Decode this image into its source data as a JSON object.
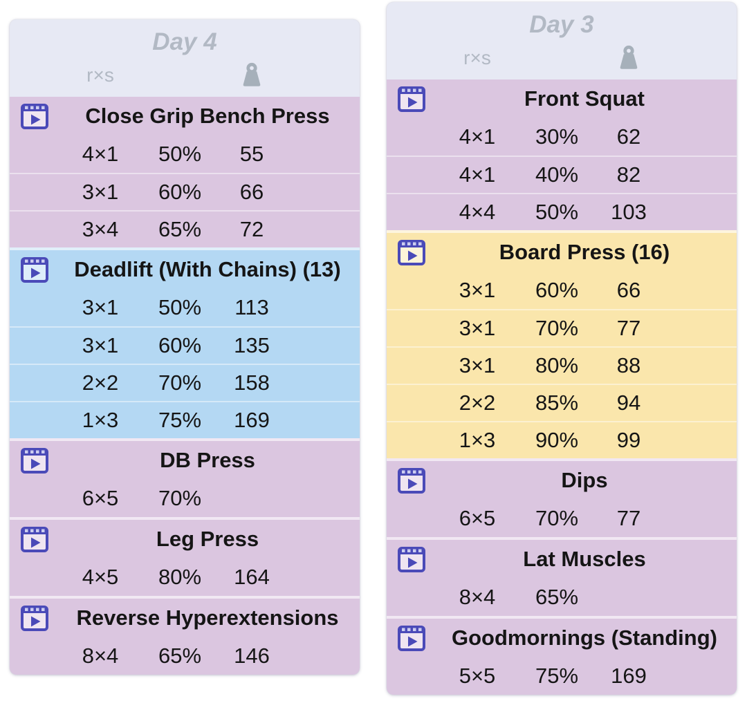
{
  "colors": {
    "page_background": "#ffffff",
    "card_header_background": "#e7e9f4",
    "header_text": "#b2b9c4",
    "video_icon": "#4a4ab8",
    "weight_icon": "#a6b0ba",
    "text": "#151515",
    "sections": {
      "purple": "#dbc6e0",
      "blue": "#b4d8f3",
      "yellow": "#fae6ac"
    }
  },
  "table_header": {
    "rxs_label": "r×s",
    "weight_icon_name": "weight-icon"
  },
  "icons": {
    "video": "video-icon",
    "weight": "weight-icon"
  },
  "days": [
    {
      "title": "Day 4",
      "exercises": [
        {
          "name": "Close Grip Bench Press",
          "color": "purple",
          "sets": [
            {
              "rxs": "4×1",
              "percent": "50%",
              "weight": "55"
            },
            {
              "rxs": "3×1",
              "percent": "60%",
              "weight": "66"
            },
            {
              "rxs": "3×4",
              "percent": "65%",
              "weight": "72"
            }
          ]
        },
        {
          "name": "Deadlift (With Chains) (13)",
          "color": "blue",
          "sets": [
            {
              "rxs": "3×1",
              "percent": "50%",
              "weight": "113"
            },
            {
              "rxs": "3×1",
              "percent": "60%",
              "weight": "135"
            },
            {
              "rxs": "2×2",
              "percent": "70%",
              "weight": "158"
            },
            {
              "rxs": "1×3",
              "percent": "75%",
              "weight": "169"
            }
          ]
        },
        {
          "name": "DB Press",
          "color": "purple",
          "sets": [
            {
              "rxs": "6×5",
              "percent": "70%",
              "weight": ""
            }
          ]
        },
        {
          "name": "Leg Press",
          "color": "purple",
          "sets": [
            {
              "rxs": "4×5",
              "percent": "80%",
              "weight": "164"
            }
          ]
        },
        {
          "name": "Reverse Hyperextensions",
          "color": "purple",
          "sets": [
            {
              "rxs": "8×4",
              "percent": "65%",
              "weight": "146"
            }
          ]
        }
      ]
    },
    {
      "title": "Day 3",
      "exercises": [
        {
          "name": "Front Squat",
          "color": "purple",
          "sets": [
            {
              "rxs": "4×1",
              "percent": "30%",
              "weight": "62"
            },
            {
              "rxs": "4×1",
              "percent": "40%",
              "weight": "82"
            },
            {
              "rxs": "4×4",
              "percent": "50%",
              "weight": "103"
            }
          ]
        },
        {
          "name": "Board Press (16)",
          "color": "yellow",
          "sets": [
            {
              "rxs": "3×1",
              "percent": "60%",
              "weight": "66"
            },
            {
              "rxs": "3×1",
              "percent": "70%",
              "weight": "77"
            },
            {
              "rxs": "3×1",
              "percent": "80%",
              "weight": "88"
            },
            {
              "rxs": "2×2",
              "percent": "85%",
              "weight": "94"
            },
            {
              "rxs": "1×3",
              "percent": "90%",
              "weight": "99"
            }
          ]
        },
        {
          "name": "Dips",
          "color": "purple",
          "sets": [
            {
              "rxs": "6×5",
              "percent": "70%",
              "weight": "77"
            }
          ]
        },
        {
          "name": "Lat Muscles",
          "color": "purple",
          "sets": [
            {
              "rxs": "8×4",
              "percent": "65%",
              "weight": ""
            }
          ]
        },
        {
          "name": "Goodmornings (Standing)",
          "color": "purple",
          "sets": [
            {
              "rxs": "5×5",
              "percent": "75%",
              "weight": "169"
            }
          ]
        }
      ]
    }
  ]
}
